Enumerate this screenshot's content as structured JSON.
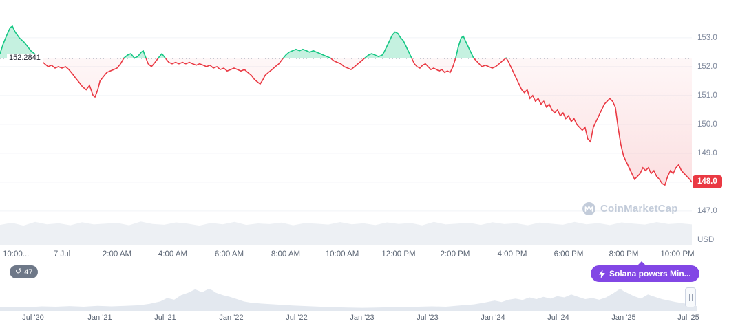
{
  "baseline_label": "152.2841",
  "y_axis": {
    "labels": [
      "153.0",
      "152.0",
      "151.0",
      "150.0",
      "149.0",
      "147.0"
    ],
    "current": "148.0",
    "unit": "USD"
  },
  "x_axis_labels": [
    "10:00...",
    "7 Jul",
    "2:00 AM",
    "4:00 AM",
    "6:00 AM",
    "8:00 AM",
    "10:00 AM",
    "12:00 PM",
    "2:00 PM",
    "4:00 PM",
    "6:00 PM",
    "8:00 PM",
    "10:00 PM"
  ],
  "timeline_labels": [
    "Jul '20",
    "Jan '21",
    "Jul '21",
    "Jan '22",
    "Jul '22",
    "Jan '23",
    "Jul '23",
    "Jan '24",
    "Jul '24",
    "Jan '25",
    "Jul '25"
  ],
  "history_count": "47",
  "tooltip_text": "Solana powers Min...",
  "watermark_text": "CoinMarketCap",
  "colors": {
    "up": "#16c784",
    "down": "#ea3943",
    "current_badge": "#ea3943",
    "tooltip": "#8247e5",
    "axis_text": "#808a9d"
  },
  "chart_data": {
    "type": "line",
    "title": "Intraday price chart (baseline up/down coloring)",
    "unit": "USD",
    "baseline": 152.2841,
    "last_price": 148.0,
    "ylim": [
      146.6,
      153.6
    ],
    "y_ticks": [
      153.0,
      152.0,
      151.0,
      150.0,
      149.0,
      148.0,
      147.0
    ],
    "x_unit": "hours_from_midnight_7_Jul",
    "x_tick_hours": [
      -2,
      0,
      2,
      4,
      6,
      8,
      10,
      12,
      14,
      16,
      18,
      20,
      22
    ],
    "grid": true,
    "points": [
      [
        -2.25,
        152.45
      ],
      [
        -2.13,
        152.8
      ],
      [
        -2,
        153.1
      ],
      [
        -1.88,
        153.35
      ],
      [
        -1.8,
        153.4
      ],
      [
        -1.7,
        153.2
      ],
      [
        -1.55,
        153
      ],
      [
        -1.38,
        152.85
      ],
      [
        -1.25,
        152.7
      ],
      [
        -1.13,
        152.55
      ],
      [
        -1,
        152.45
      ],
      [
        -0.88,
        152.35
      ],
      [
        -0.75,
        152.2
      ],
      [
        -0.63,
        152.1
      ],
      [
        -0.5,
        152
      ],
      [
        -0.38,
        152.05
      ],
      [
        -0.25,
        151.95
      ],
      [
        -0.13,
        152
      ],
      [
        0,
        151.95
      ],
      [
        0.13,
        152
      ],
      [
        0.25,
        151.9
      ],
      [
        0.38,
        151.75
      ],
      [
        0.5,
        151.6
      ],
      [
        0.63,
        151.45
      ],
      [
        0.75,
        151.3
      ],
      [
        0.88,
        151.2
      ],
      [
        1,
        151.35
      ],
      [
        1.13,
        151
      ],
      [
        1.2,
        150.95
      ],
      [
        1.3,
        151.2
      ],
      [
        1.38,
        151.5
      ],
      [
        1.5,
        151.65
      ],
      [
        1.63,
        151.8
      ],
      [
        1.75,
        151.85
      ],
      [
        1.88,
        151.9
      ],
      [
        2,
        151.95
      ],
      [
        2.13,
        152.1
      ],
      [
        2.25,
        152.3
      ],
      [
        2.38,
        152.4
      ],
      [
        2.5,
        152.45
      ],
      [
        2.63,
        152.3
      ],
      [
        2.75,
        152.35
      ],
      [
        2.88,
        152.5
      ],
      [
        2.95,
        152.55
      ],
      [
        3.05,
        152.3
      ],
      [
        3.13,
        152.1
      ],
      [
        3.25,
        152
      ],
      [
        3.38,
        152.15
      ],
      [
        3.5,
        152.3
      ],
      [
        3.63,
        152.45
      ],
      [
        3.75,
        152.3
      ],
      [
        3.88,
        152.15
      ],
      [
        4,
        152.1
      ],
      [
        4.13,
        152.15
      ],
      [
        4.25,
        152.1
      ],
      [
        4.38,
        152.15
      ],
      [
        4.5,
        152.1
      ],
      [
        4.63,
        152.15
      ],
      [
        4.75,
        152.1
      ],
      [
        4.88,
        152.05
      ],
      [
        5,
        152.1
      ],
      [
        5.13,
        152.05
      ],
      [
        5.25,
        152
      ],
      [
        5.38,
        152.05
      ],
      [
        5.5,
        151.95
      ],
      [
        5.63,
        152
      ],
      [
        5.75,
        151.9
      ],
      [
        5.88,
        151.95
      ],
      [
        6,
        151.85
      ],
      [
        6.13,
        151.9
      ],
      [
        6.25,
        151.95
      ],
      [
        6.38,
        151.9
      ],
      [
        6.5,
        151.85
      ],
      [
        6.63,
        151.9
      ],
      [
        6.75,
        151.8
      ],
      [
        6.88,
        151.7
      ],
      [
        7,
        151.55
      ],
      [
        7.13,
        151.45
      ],
      [
        7.2,
        151.4
      ],
      [
        7.3,
        151.55
      ],
      [
        7.38,
        151.7
      ],
      [
        7.5,
        151.8
      ],
      [
        7.63,
        151.9
      ],
      [
        7.75,
        152
      ],
      [
        7.88,
        152.1
      ],
      [
        8,
        152.25
      ],
      [
        8.13,
        152.4
      ],
      [
        8.25,
        152.5
      ],
      [
        8.38,
        152.55
      ],
      [
        8.5,
        152.6
      ],
      [
        8.63,
        152.55
      ],
      [
        8.75,
        152.6
      ],
      [
        8.88,
        152.55
      ],
      [
        9,
        152.5
      ],
      [
        9.13,
        152.55
      ],
      [
        9.25,
        152.5
      ],
      [
        9.38,
        152.45
      ],
      [
        9.5,
        152.4
      ],
      [
        9.63,
        152.35
      ],
      [
        9.75,
        152.3
      ],
      [
        9.88,
        152.2
      ],
      [
        10,
        152.15
      ],
      [
        10.13,
        152.1
      ],
      [
        10.25,
        152
      ],
      [
        10.38,
        151.95
      ],
      [
        10.5,
        151.9
      ],
      [
        10.63,
        152
      ],
      [
        10.75,
        152.1
      ],
      [
        10.88,
        152.2
      ],
      [
        11,
        152.3
      ],
      [
        11.13,
        152.4
      ],
      [
        11.25,
        152.45
      ],
      [
        11.38,
        152.4
      ],
      [
        11.5,
        152.35
      ],
      [
        11.63,
        152.4
      ],
      [
        11.7,
        152.5
      ],
      [
        11.8,
        152.7
      ],
      [
        11.9,
        152.9
      ],
      [
        12,
        153.1
      ],
      [
        12.1,
        153.2
      ],
      [
        12.2,
        153.15
      ],
      [
        12.3,
        153
      ],
      [
        12.4,
        152.9
      ],
      [
        12.5,
        152.7
      ],
      [
        12.6,
        152.5
      ],
      [
        12.7,
        152.3
      ],
      [
        12.8,
        152.1
      ],
      [
        12.9,
        152
      ],
      [
        13,
        151.95
      ],
      [
        13.1,
        152.05
      ],
      [
        13.2,
        152.1
      ],
      [
        13.3,
        152
      ],
      [
        13.4,
        151.9
      ],
      [
        13.5,
        151.95
      ],
      [
        13.6,
        151.9
      ],
      [
        13.7,
        151.85
      ],
      [
        13.8,
        151.9
      ],
      [
        13.9,
        151.8
      ],
      [
        14,
        151.85
      ],
      [
        14.1,
        151.8
      ],
      [
        14.2,
        152
      ],
      [
        14.3,
        152.3
      ],
      [
        14.4,
        152.7
      ],
      [
        14.5,
        153
      ],
      [
        14.58,
        153.05
      ],
      [
        14.65,
        152.9
      ],
      [
        14.75,
        152.7
      ],
      [
        14.85,
        152.5
      ],
      [
        14.95,
        152.3
      ],
      [
        15.05,
        152.2
      ],
      [
        15.15,
        152.1
      ],
      [
        15.25,
        152
      ],
      [
        15.38,
        152.05
      ],
      [
        15.5,
        152
      ],
      [
        15.63,
        151.95
      ],
      [
        15.75,
        152
      ],
      [
        15.88,
        152.1
      ],
      [
        16,
        152.2
      ],
      [
        16.13,
        152.3
      ],
      [
        16.2,
        152.2
      ],
      [
        16.3,
        152
      ],
      [
        16.4,
        151.8
      ],
      [
        16.5,
        151.6
      ],
      [
        16.6,
        151.4
      ],
      [
        16.7,
        151.2
      ],
      [
        16.8,
        151.1
      ],
      [
        16.9,
        151.2
      ],
      [
        17,
        150.9
      ],
      [
        17.1,
        151
      ],
      [
        17.2,
        150.8
      ],
      [
        17.3,
        150.9
      ],
      [
        17.4,
        150.7
      ],
      [
        17.5,
        150.8
      ],
      [
        17.6,
        150.6
      ],
      [
        17.7,
        150.7
      ],
      [
        17.8,
        150.5
      ],
      [
        17.9,
        150.4
      ],
      [
        18,
        150.5
      ],
      [
        18.1,
        150.3
      ],
      [
        18.2,
        150.4
      ],
      [
        18.3,
        150.2
      ],
      [
        18.4,
        150.3
      ],
      [
        18.5,
        150.1
      ],
      [
        18.6,
        150.2
      ],
      [
        18.7,
        150
      ],
      [
        18.8,
        149.9
      ],
      [
        18.9,
        149.8
      ],
      [
        19,
        149.9
      ],
      [
        19.1,
        149.5
      ],
      [
        19.2,
        149.4
      ],
      [
        19.3,
        149.9
      ],
      [
        19.4,
        150.1
      ],
      [
        19.5,
        150.3
      ],
      [
        19.6,
        150.5
      ],
      [
        19.7,
        150.7
      ],
      [
        19.8,
        150.8
      ],
      [
        19.9,
        150.9
      ],
      [
        20,
        150.8
      ],
      [
        20.1,
        150.6
      ],
      [
        20.2,
        149.9
      ],
      [
        20.3,
        149.3
      ],
      [
        20.4,
        148.9
      ],
      [
        20.5,
        148.7
      ],
      [
        20.6,
        148.5
      ],
      [
        20.7,
        148.3
      ],
      [
        20.8,
        148.1
      ],
      [
        20.9,
        148.2
      ],
      [
        21,
        148.3
      ],
      [
        21.1,
        148.5
      ],
      [
        21.2,
        148.4
      ],
      [
        21.3,
        148.5
      ],
      [
        21.4,
        148.3
      ],
      [
        21.5,
        148.4
      ],
      [
        21.6,
        148.2
      ],
      [
        21.7,
        148.1
      ],
      [
        21.8,
        147.95
      ],
      [
        21.9,
        147.9
      ],
      [
        22,
        148.2
      ],
      [
        22.1,
        148.4
      ],
      [
        22.2,
        148.3
      ],
      [
        22.3,
        148.5
      ],
      [
        22.4,
        148.6
      ],
      [
        22.5,
        148.4
      ],
      [
        22.6,
        148.3
      ],
      [
        22.7,
        148.2
      ],
      [
        22.8,
        148.1
      ],
      [
        22.88,
        148
      ]
    ],
    "volume_rel": [
      0.62,
      0.75,
      0.58,
      0.8,
      0.66,
      0.72,
      0.6,
      0.78,
      0.65,
      0.7,
      0.74,
      0.6,
      0.82,
      0.68,
      0.63,
      0.77,
      0.7,
      0.58,
      0.74,
      0.66,
      0.8,
      0.62,
      0.71,
      0.67,
      0.76,
      0.6,
      0.73,
      0.69,
      0.64,
      0.79,
      0.66,
      0.72,
      0.61,
      0.77,
      0.68,
      0.74,
      0.59,
      0.8,
      0.65,
      0.7,
      0.75,
      0.62,
      0.78,
      0.67,
      0.72,
      0.6,
      0.76,
      0.69,
      0.63,
      0.8,
      0.66,
      0.73,
      0.61,
      0.77,
      0.7,
      0.64,
      0.79,
      0.67,
      0.72,
      0.65
    ],
    "navigator_points": [
      [
        0,
        0.1
      ],
      [
        0.02,
        0.12
      ],
      [
        0.04,
        0.1
      ],
      [
        0.06,
        0.13
      ],
      [
        0.08,
        0.12
      ],
      [
        0.1,
        0.14
      ],
      [
        0.12,
        0.12
      ],
      [
        0.14,
        0.15
      ],
      [
        0.16,
        0.13
      ],
      [
        0.18,
        0.15
      ],
      [
        0.2,
        0.17
      ],
      [
        0.215,
        0.22
      ],
      [
        0.23,
        0.3
      ],
      [
        0.24,
        0.42
      ],
      [
        0.25,
        0.36
      ],
      [
        0.26,
        0.52
      ],
      [
        0.27,
        0.6
      ],
      [
        0.28,
        0.72
      ],
      [
        0.29,
        0.62
      ],
      [
        0.3,
        0.74
      ],
      [
        0.305,
        0.68
      ],
      [
        0.31,
        0.6
      ],
      [
        0.32,
        0.52
      ],
      [
        0.33,
        0.46
      ],
      [
        0.34,
        0.38
      ],
      [
        0.35,
        0.3
      ],
      [
        0.36,
        0.26
      ],
      [
        0.38,
        0.22
      ],
      [
        0.4,
        0.19
      ],
      [
        0.42,
        0.16
      ],
      [
        0.44,
        0.14
      ],
      [
        0.46,
        0.12
      ],
      [
        0.48,
        0.1
      ],
      [
        0.5,
        0.09
      ],
      [
        0.52,
        0.08
      ],
      [
        0.54,
        0.09
      ],
      [
        0.56,
        0.1
      ],
      [
        0.58,
        0.11
      ],
      [
        0.6,
        0.12
      ],
      [
        0.62,
        0.13
      ],
      [
        0.64,
        0.12
      ],
      [
        0.66,
        0.16
      ],
      [
        0.68,
        0.2
      ],
      [
        0.695,
        0.26
      ],
      [
        0.71,
        0.33
      ],
      [
        0.72,
        0.28
      ],
      [
        0.73,
        0.36
      ],
      [
        0.74,
        0.4
      ],
      [
        0.75,
        0.35
      ],
      [
        0.76,
        0.44
      ],
      [
        0.77,
        0.38
      ],
      [
        0.78,
        0.46
      ],
      [
        0.79,
        0.4
      ],
      [
        0.8,
        0.48
      ],
      [
        0.81,
        0.44
      ],
      [
        0.82,
        0.54
      ],
      [
        0.83,
        0.46
      ],
      [
        0.84,
        0.38
      ],
      [
        0.85,
        0.42
      ],
      [
        0.86,
        0.36
      ],
      [
        0.87,
        0.44
      ],
      [
        0.88,
        0.58
      ],
      [
        0.89,
        0.74
      ],
      [
        0.895,
        0.66
      ],
      [
        0.91,
        0.48
      ],
      [
        0.92,
        0.4
      ],
      [
        0.93,
        0.54
      ],
      [
        0.94,
        0.46
      ],
      [
        0.95,
        0.38
      ],
      [
        0.96,
        0.33
      ],
      [
        0.97,
        0.28
      ],
      [
        0.98,
        0.24
      ],
      [
        0.99,
        0.2
      ],
      [
        1,
        0.14
      ]
    ],
    "navigator_tick_labels": [
      "Jul '20",
      "Jan '21",
      "Jul '21",
      "Jan '22",
      "Jul '22",
      "Jan '23",
      "Jul '23",
      "Jan '24",
      "Jul '24",
      "Jan '25",
      "Jul '25"
    ]
  }
}
